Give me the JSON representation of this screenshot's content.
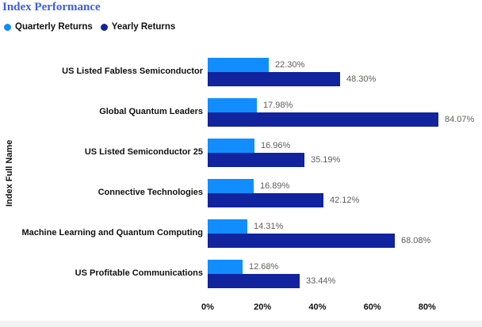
{
  "chart_data": {
    "type": "bar",
    "orientation": "horizontal",
    "title": "Index Performance",
    "xlabel": "",
    "ylabel": "Index Full Name",
    "grid": false,
    "legend_position": "top-left",
    "xlim": [
      0,
      86
    ],
    "x_ticks": [
      "0%",
      "20%",
      "40%",
      "60%",
      "80%"
    ],
    "x_tick_values": [
      0,
      20,
      40,
      60,
      80
    ],
    "categories": [
      "US Listed Fabless Semiconductor",
      "Global Quantum Leaders",
      "US Listed Semiconductor 25",
      "Connective Technologies",
      "Machine Learning and Quantum Computing",
      "US Profitable Communications"
    ],
    "series": [
      {
        "name": "Quarterly Returns",
        "color": "#118DFF",
        "values": [
          22.3,
          17.98,
          16.96,
          16.89,
          14.31,
          12.68
        ],
        "labels": [
          "22.30%",
          "17.98%",
          "16.96%",
          "16.89%",
          "14.31%",
          "12.68%"
        ]
      },
      {
        "name": "Yearly Returns",
        "color": "#12239E",
        "values": [
          48.3,
          84.07,
          35.19,
          42.12,
          68.08,
          33.44
        ],
        "labels": [
          "48.30%",
          "84.07%",
          "35.19%",
          "42.12%",
          "68.08%",
          "33.44%"
        ]
      }
    ]
  },
  "colors": {
    "title_text": "#3B5FE5",
    "value_label": "#605E5C",
    "axis_text": "#111111",
    "scrollbar_track": "#F2F2F2",
    "background": "#FFFFFF"
  }
}
